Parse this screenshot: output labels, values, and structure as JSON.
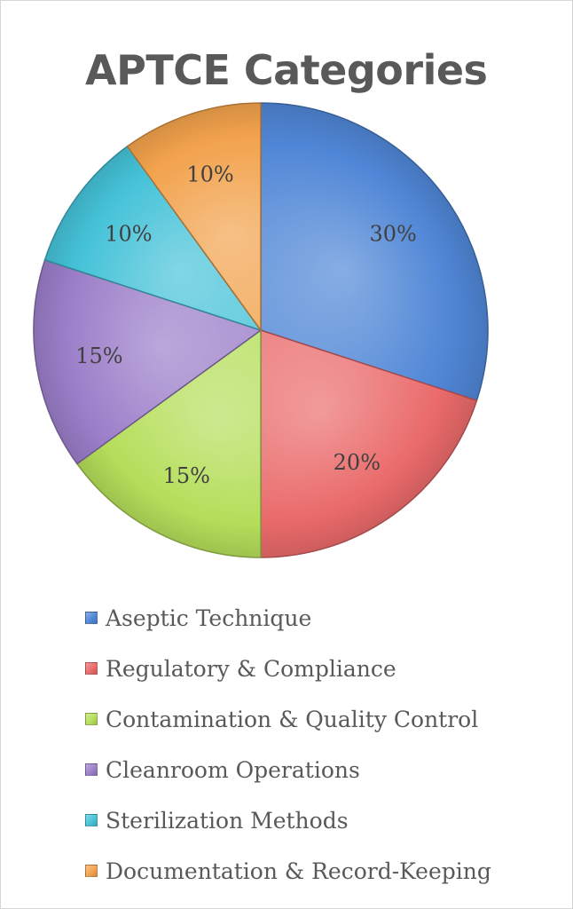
{
  "chart_data": {
    "type": "pie",
    "title": "APTCE Categories",
    "series": [
      {
        "name": "Aseptic Technique",
        "value": 30,
        "label": "30%",
        "color": "#4f86d6"
      },
      {
        "name": "Regulatory & Compliance",
        "value": 20,
        "label": "20%",
        "color": "#ea6a6a"
      },
      {
        "name": "Contamination & Quality Control",
        "value": 15,
        "label": "15%",
        "color": "#b5de5a"
      },
      {
        "name": "Cleanroom Operations",
        "value": 15,
        "label": "15%",
        "color": "#9b7ec9"
      },
      {
        "name": "Sterilization Methods",
        "value": 10,
        "label": "10%",
        "color": "#45c2d8"
      },
      {
        "name": "Documentation & Record-Keeping",
        "value": 10,
        "label": "10%",
        "color": "#f2a24c"
      }
    ],
    "legend_position": "bottom",
    "start_angle": "12 o'clock",
    "direction": "clockwise"
  }
}
